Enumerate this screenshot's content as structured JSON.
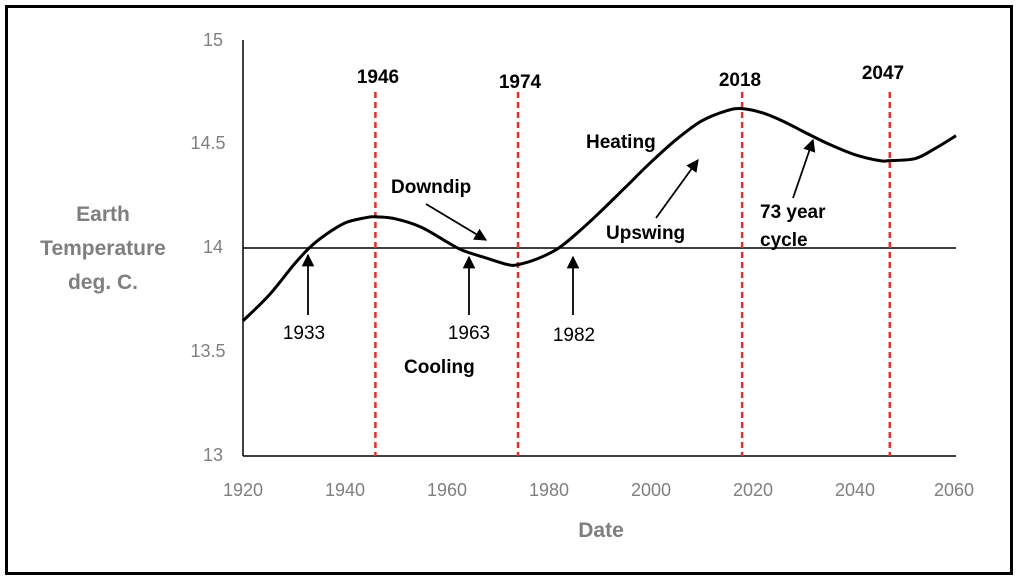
{
  "chart_data": {
    "type": "line",
    "title": "",
    "xlabel": "Date",
    "ylabel": [
      "Earth",
      "Temperature",
      "deg. C."
    ],
    "xlim": [
      1920,
      2060
    ],
    "ylim": [
      13,
      15
    ],
    "x_ticks": [
      1920,
      1940,
      1960,
      1980,
      2000,
      2020,
      2040,
      2060
    ],
    "y_ticks": [
      "13",
      "13.5",
      "14",
      "14.5",
      "15"
    ],
    "y_tick_values": [
      13,
      13.5,
      14,
      14.5,
      15
    ],
    "reference_line": 14,
    "series": [
      {
        "name": "Earth Temperature",
        "color": "#000000",
        "x": [
          1920,
          1925,
          1930,
          1933,
          1936,
          1940,
          1944,
          1946,
          1950,
          1955,
          1960,
          1963,
          1968,
          1972,
          1974,
          1978,
          1982,
          1986,
          1990,
          1995,
          2000,
          2005,
          2010,
          2015,
          2018,
          2022,
          2026,
          2030,
          2035,
          2040,
          2045,
          2047,
          2052,
          2056,
          2060
        ],
        "y": [
          13.65,
          13.77,
          13.92,
          14.0,
          14.06,
          14.12,
          14.145,
          14.15,
          14.14,
          14.1,
          14.03,
          13.99,
          13.95,
          13.92,
          13.92,
          13.95,
          14.0,
          14.08,
          14.17,
          14.29,
          14.41,
          14.52,
          14.61,
          14.66,
          14.67,
          14.65,
          14.61,
          14.56,
          14.5,
          14.45,
          14.42,
          14.42,
          14.43,
          14.48,
          14.54
        ]
      }
    ],
    "vertical_markers": [
      {
        "year": 1946,
        "label": "1946"
      },
      {
        "year": 1974,
        "label": "1974"
      },
      {
        "year": 2018,
        "label": "2018"
      },
      {
        "year": 2047,
        "label": "2047"
      }
    ],
    "marker_color": "#e03030",
    "annotations": [
      {
        "text": "Heating",
        "style": "bold"
      },
      {
        "text": "Downdip",
        "style": "bold"
      },
      {
        "text": "Upswing",
        "style": "bold"
      },
      {
        "text": "73 year",
        "style": "bold"
      },
      {
        "text": "cycle",
        "style": "bold"
      },
      {
        "text": "Cooling",
        "style": "bold"
      },
      {
        "text": "1933",
        "style": "plain"
      },
      {
        "text": "1963",
        "style": "plain"
      },
      {
        "text": "1982",
        "style": "plain"
      }
    ]
  }
}
